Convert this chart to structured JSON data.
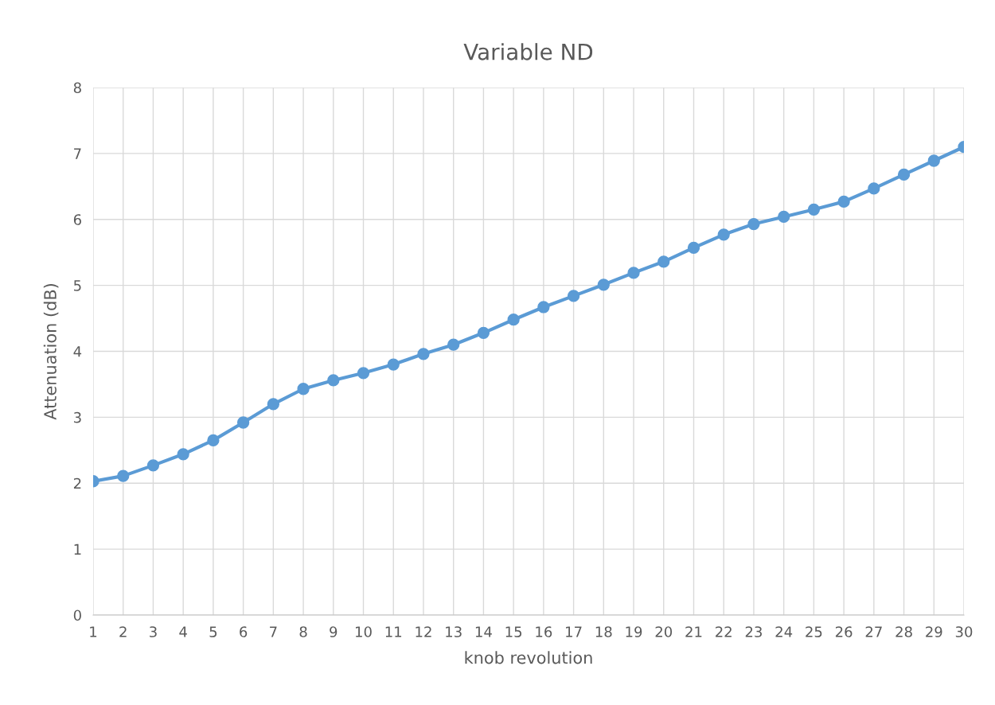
{
  "chart_data": {
    "type": "line",
    "title": "Variable ND",
    "xlabel": "knob revolution",
    "ylabel": "Attenuation (dB)",
    "categories": [
      "1",
      "2",
      "3",
      "4",
      "5",
      "6",
      "7",
      "8",
      "9",
      "10",
      "11",
      "12",
      "13",
      "14",
      "15",
      "16",
      "17",
      "18",
      "19",
      "20",
      "21",
      "22",
      "23",
      "24",
      "25",
      "26",
      "27",
      "28",
      "29",
      "30"
    ],
    "series": [
      {
        "color": "#5b9bd5",
        "values": [
          2.03,
          2.11,
          2.27,
          2.44,
          2.65,
          2.92,
          3.2,
          3.43,
          3.56,
          3.67,
          3.8,
          3.96,
          4.1,
          4.28,
          4.48,
          4.67,
          4.84,
          5.01,
          5.19,
          5.36,
          5.57,
          5.77,
          5.93,
          6.04,
          6.15,
          6.27,
          6.47,
          6.68,
          6.89,
          7.1
        ]
      }
    ],
    "ylim": [
      0,
      8
    ],
    "yticks": [
      0,
      1,
      2,
      3,
      4,
      5,
      6,
      7,
      8
    ],
    "grid": true,
    "marker": "circle",
    "line_style": "solid",
    "legend": false
  }
}
